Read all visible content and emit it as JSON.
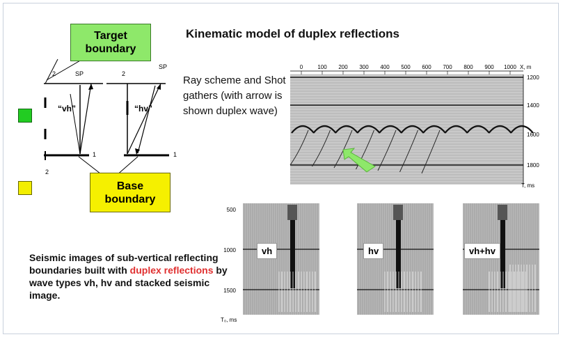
{
  "title": "Kinematic model of duplex reflections",
  "target_label": "Target\nboundary",
  "base_label": "Base\nboundary",
  "ray_text": "Ray scheme and Shot gathers (with arrow is shown duplex wave)",
  "bottom_text_before": "Seismic images of sub-vertical reflecting boundaries built with ",
  "bottom_text_red": "duplex reflections",
  "bottom_text_after": " by wave types vh, hv and stacked seismic image.",
  "diagram": {
    "left_labels": {
      "num_top": "2",
      "sp": "SP",
      "wave": "“vh”",
      "num_right": "1",
      "num_bottom": "2"
    },
    "right_labels": {
      "num_top": "2",
      "sp": "SP",
      "wave": "“hv”",
      "num_right": "1"
    }
  },
  "shot_gather": {
    "x_ticks": [
      "0",
      "100",
      "200",
      "300",
      "400",
      "500",
      "600",
      "700",
      "800",
      "900",
      "1000"
    ],
    "x_unit": "X, m",
    "y_ticks": [
      "1200",
      "1400",
      "1600",
      "1800"
    ],
    "y_unit": "T, ms"
  },
  "panels": {
    "y_ticks": [
      "500",
      "1000",
      "1500"
    ],
    "y_unit": "T₀, ms",
    "labels": [
      "vh",
      "hv",
      "vh+hv"
    ]
  },
  "colors": {
    "target": "#8ee86a",
    "base": "#f5f000",
    "arrow": "#8ee86a",
    "red_text": "#e03030"
  }
}
